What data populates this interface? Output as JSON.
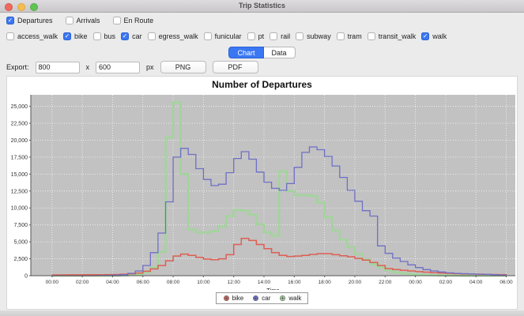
{
  "window": {
    "title": "Trip Statistics"
  },
  "filters": {
    "stat_types": [
      {
        "label": "Departures",
        "checked": true
      },
      {
        "label": "Arrivals",
        "checked": false
      },
      {
        "label": "En Route",
        "checked": false
      }
    ],
    "modes": [
      {
        "label": "access_walk",
        "checked": false
      },
      {
        "label": "bike",
        "checked": true
      },
      {
        "label": "bus",
        "checked": false
      },
      {
        "label": "car",
        "checked": true
      },
      {
        "label": "egress_walk",
        "checked": false
      },
      {
        "label": "funicular",
        "checked": false
      },
      {
        "label": "pt",
        "checked": false
      },
      {
        "label": "rail",
        "checked": false
      },
      {
        "label": "subway",
        "checked": false
      },
      {
        "label": "tram",
        "checked": false
      },
      {
        "label": "transit_walk",
        "checked": false
      },
      {
        "label": "walk",
        "checked": true
      }
    ]
  },
  "tabs": [
    {
      "label": "Chart",
      "selected": true
    },
    {
      "label": "Data",
      "selected": false
    }
  ],
  "export": {
    "label": "Export:",
    "width_value": "800",
    "separator": "x",
    "height_value": "600",
    "unit": "px",
    "png_label": "PNG",
    "pdf_label": "PDF"
  },
  "colors": {
    "accent_blue": "#3b77f2",
    "plot_background": "#c2c2c2",
    "grid": "#ffffff",
    "axis": "#555555"
  },
  "chart_data": {
    "type": "line",
    "style": "step",
    "title": "Number of Departures",
    "xlabel": "Time",
    "ylabel": "",
    "bin_minutes": 30,
    "xlim_hours": [
      -1.4,
      30.6
    ],
    "ylim": [
      0,
      26700
    ],
    "y_ticks": [
      0,
      2500,
      5000,
      7500,
      10000,
      12500,
      15000,
      17500,
      20000,
      22500,
      25000
    ],
    "x_tick_hours": [
      0,
      2,
      4,
      6,
      8,
      10,
      12,
      14,
      16,
      18,
      20,
      22,
      24,
      26,
      28,
      30
    ],
    "x_tick_labels": [
      "00:00",
      "02:00",
      "04:00",
      "06:00",
      "08:00",
      "10:00",
      "12:00",
      "14:00",
      "16:00",
      "18:00",
      "20:00",
      "22:00",
      "00:00",
      "02:00",
      "04:00",
      "06:00"
    ],
    "hours": [
      0,
      0.5,
      1,
      1.5,
      2,
      2.5,
      3,
      3.5,
      4,
      4.5,
      5,
      5.5,
      6,
      6.5,
      7,
      7.5,
      8,
      8.5,
      9,
      9.5,
      10,
      10.5,
      11,
      11.5,
      12,
      12.5,
      13,
      13.5,
      14,
      14.5,
      15,
      15.5,
      16,
      16.5,
      17,
      17.5,
      18,
      18.5,
      19,
      19.5,
      20,
      20.5,
      21,
      21.5,
      22,
      22.5,
      23,
      23.5,
      24,
      24.5,
      25,
      25.5,
      26,
      26.5,
      27,
      27.5,
      28,
      28.5,
      29,
      29.5,
      30
    ],
    "series": [
      {
        "name": "walk",
        "color": "#a3d49c",
        "width": 2.6,
        "values": [
          0,
          0,
          0,
          0,
          0,
          0,
          0,
          0,
          0,
          50,
          100,
          200,
          500,
          1200,
          3500,
          20400,
          25600,
          15000,
          6800,
          6400,
          6400,
          6600,
          7300,
          8800,
          9700,
          9600,
          9000,
          7600,
          6400,
          5900,
          15400,
          12500,
          11900,
          11900,
          11800,
          10800,
          8600,
          6700,
          5300,
          4200,
          3200,
          2400,
          1700,
          1200,
          800,
          500,
          350,
          250,
          180,
          120,
          80,
          50,
          30,
          20,
          10,
          0,
          0,
          0,
          0,
          0,
          0
        ]
      },
      {
        "name": "bike",
        "color": "#dd5f53",
        "width": 1.5,
        "values": [
          120,
          120,
          130,
          130,
          140,
          140,
          150,
          160,
          180,
          220,
          280,
          400,
          650,
          1000,
          1500,
          2200,
          2900,
          3200,
          3000,
          2700,
          2450,
          2350,
          2500,
          3100,
          4600,
          5500,
          5200,
          4600,
          4000,
          3400,
          3000,
          2850,
          2900,
          3000,
          3150,
          3250,
          3250,
          3100,
          2950,
          2800,
          2550,
          2300,
          1950,
          1500,
          1050,
          900,
          800,
          700,
          600,
          520,
          450,
          400,
          350,
          300,
          270,
          240,
          220,
          200,
          180,
          160,
          150
        ]
      },
      {
        "name": "car",
        "color": "#6f6fc6",
        "width": 1.3,
        "values": [
          0,
          0,
          0,
          0,
          0,
          0,
          50,
          60,
          80,
          150,
          350,
          700,
          1500,
          3400,
          6300,
          10900,
          17500,
          18800,
          17900,
          15800,
          14200,
          13300,
          13500,
          15200,
          17300,
          18300,
          17200,
          15300,
          13800,
          12900,
          12600,
          13600,
          16000,
          18200,
          19000,
          18600,
          17600,
          16200,
          14500,
          12600,
          11000,
          9600,
          8800,
          4400,
          3300,
          2600,
          2100,
          1600,
          1200,
          900,
          700,
          550,
          420,
          350,
          300,
          260,
          230,
          200,
          150,
          100,
          80
        ]
      }
    ],
    "legend_order": [
      "bike",
      "car",
      "walk"
    ],
    "legend_position": "bottom-center",
    "grid": true
  }
}
